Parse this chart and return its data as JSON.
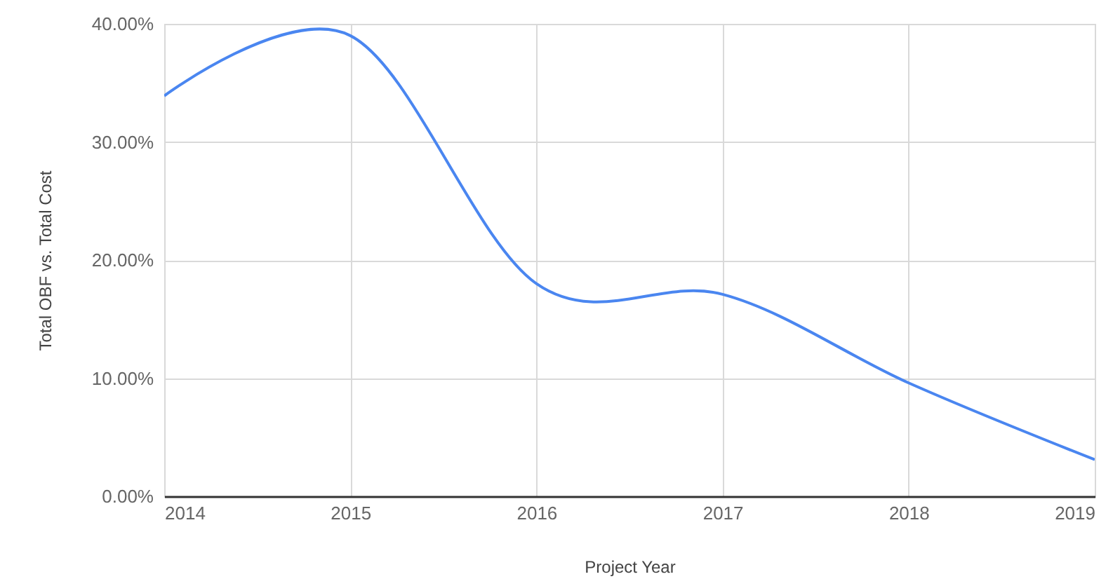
{
  "chart_data": {
    "type": "line",
    "xlabel": "Project Year",
    "ylabel": "Total OBF vs. Total Cost",
    "x": [
      2014,
      2015,
      2016,
      2017,
      2018,
      2019
    ],
    "series": [
      {
        "color": "#4a86f0",
        "values": [
          33.9,
          39.0,
          18.0,
          17.1,
          9.6,
          3.1
        ]
      }
    ],
    "xlim": [
      2014,
      2019
    ],
    "xticks": [
      2014,
      2015,
      2016,
      2017,
      2018,
      2019
    ],
    "ylim": [
      0,
      40
    ],
    "yticks": [
      {
        "value": 0,
        "label": "0.00%"
      },
      {
        "value": 10,
        "label": "10.00%"
      },
      {
        "value": 20,
        "label": "20.00%"
      },
      {
        "value": 30,
        "label": "30.00%"
      },
      {
        "value": 40,
        "label": "40.00%"
      }
    ],
    "grid": true,
    "marker": "none",
    "line_style": "solid"
  }
}
